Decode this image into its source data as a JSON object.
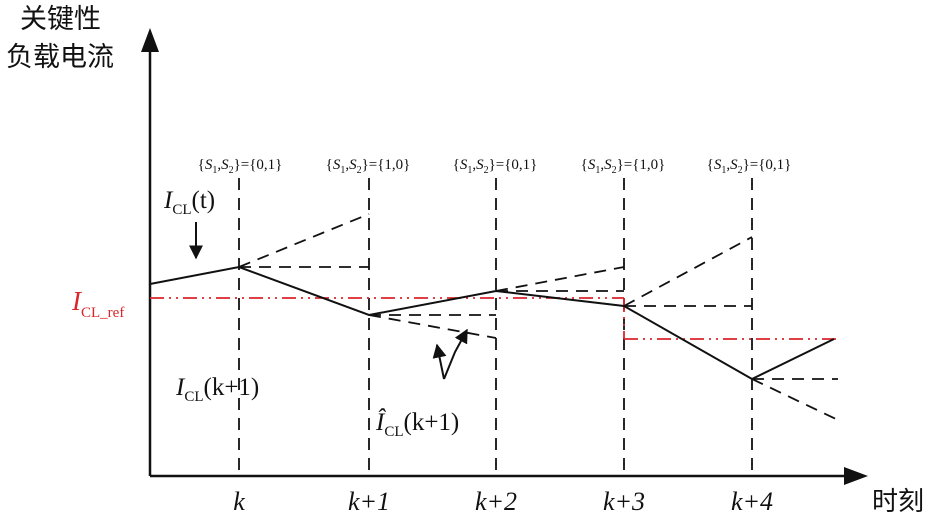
{
  "y_axis_label": [
    "关键性",
    "负载电流"
  ],
  "x_axis_label": "时刻",
  "ticks": [
    "k",
    "k+1",
    "k+2",
    "k+3",
    "k+4"
  ],
  "states": [
    {
      "prefix": "{",
      "s1": "S",
      "i1": "1",
      "comma": ",",
      "s2": "S",
      "i2": "2",
      "suffix": "}={0,1}"
    },
    {
      "prefix": "{",
      "s1": "S",
      "i1": "1",
      "comma": ",",
      "s2": "S",
      "i2": "2",
      "suffix": "}={1,0}"
    },
    {
      "prefix": "{",
      "s1": "S",
      "i1": "1",
      "comma": ",",
      "s2": "S",
      "i2": "2",
      "suffix": "}={0,1}"
    },
    {
      "prefix": "{",
      "s1": "S",
      "i1": "1",
      "comma": ",",
      "s2": "S",
      "i2": "2",
      "suffix": "}={1,0}"
    },
    {
      "prefix": "{",
      "s1": "S",
      "i1": "1",
      "comma": ",",
      "s2": "S",
      "i2": "2",
      "suffix": "}={0,1}"
    }
  ],
  "label_ict": {
    "base": "I",
    "sub": "CL",
    "arg": "(t)"
  },
  "label_ref": {
    "base": "I",
    "sub": "CL_ref"
  },
  "label_ik1": {
    "base": "I",
    "sub": "CL",
    "arg": "(k+1)"
  },
  "label_ihat": {
    "base": "Î",
    "sub": "CL",
    "arg": "(k+1)"
  },
  "colors": {
    "line": "#111111",
    "reference": "#d9262b",
    "background": "#ffffff"
  }
}
